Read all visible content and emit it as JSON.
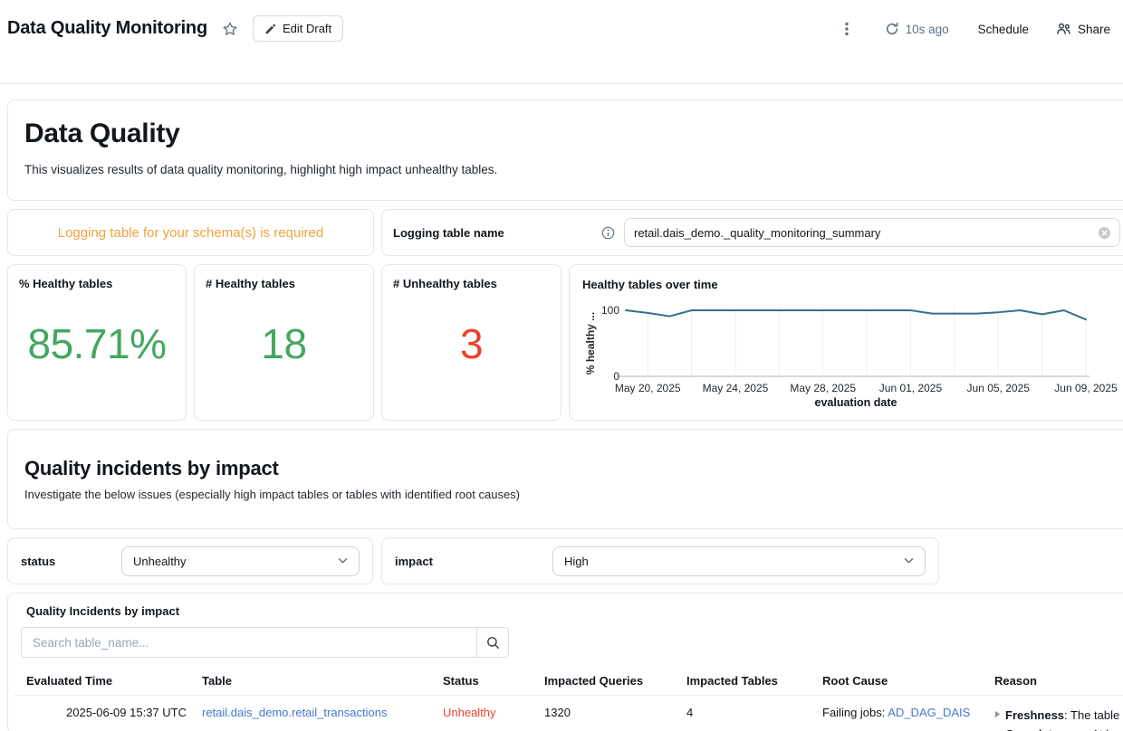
{
  "colors": {
    "green": "#44A75F",
    "red": "#E8432D",
    "orange": "#F0A23B",
    "link": "#4477CC",
    "secondary": "#5F7281"
  },
  "header": {
    "title": "Data Quality Monitoring",
    "edit_label": "Edit Draft",
    "refresh_age": "10s ago",
    "schedule_label": "Schedule",
    "share_label": "Share"
  },
  "intro": {
    "title": "Data Quality",
    "description": "This visualizes results of data quality monitoring, highlight high impact unhealthy tables."
  },
  "logging": {
    "warning": "Logging table for your schema(s) is required",
    "label": "Logging table name",
    "value": "retail.dais_demo._quality_monitoring_summary"
  },
  "stats": [
    {
      "label": "% Healthy tables",
      "value": "85.71%",
      "color": "#44A75F"
    },
    {
      "label": "# Healthy tables",
      "value": "18",
      "color": "#44A75F"
    },
    {
      "label": "# Unhealthy tables",
      "value": "3",
      "color": "#E8432D"
    }
  ],
  "chart_data": {
    "type": "line",
    "title": "Healthy tables over time",
    "xlabel": "evaluation date",
    "ylabel": "% healthy ...",
    "ylim": [
      0,
      100
    ],
    "y_ticks": [
      0,
      100
    ],
    "legend": false,
    "grid": "vertical",
    "line_color": "#31708F",
    "x": [
      "May 19, 2025",
      "May 20, 2025",
      "May 21, 2025",
      "May 22, 2025",
      "May 23, 2025",
      "May 24, 2025",
      "May 25, 2025",
      "May 26, 2025",
      "May 27, 2025",
      "May 28, 2025",
      "May 29, 2025",
      "May 30, 2025",
      "May 31, 2025",
      "Jun 01, 2025",
      "Jun 02, 2025",
      "Jun 03, 2025",
      "Jun 04, 2025",
      "Jun 05, 2025",
      "Jun 06, 2025",
      "Jun 07, 2025",
      "Jun 08, 2025",
      "Jun 09, 2025"
    ],
    "values": [
      100,
      96,
      91,
      100,
      100,
      100,
      100,
      100,
      100,
      100,
      100,
      100,
      100,
      100,
      95,
      95,
      95,
      97,
      100,
      94,
      100,
      86
    ],
    "x_tick_indices": [
      1,
      5,
      9,
      13,
      17,
      21
    ],
    "x_tick_labels": [
      "May 20, 2025",
      "May 24, 2025",
      "May 28, 2025",
      "Jun 01, 2025",
      "Jun 05, 2025",
      "Jun 09, 2025"
    ],
    "gridline_indices": [
      1,
      3,
      5,
      7,
      9,
      11,
      13,
      15,
      17,
      19,
      21
    ]
  },
  "section": {
    "title": "Quality incidents by impact",
    "subtitle": "Investigate the below issues (especially high impact tables or tables with identified root causes)"
  },
  "filters": {
    "status": {
      "label": "status",
      "value": "Unhealthy"
    },
    "impact": {
      "label": "impact",
      "value": "High"
    }
  },
  "table": {
    "title": "Quality Incidents by impact",
    "search_placeholder": "Search table_name...",
    "columns": [
      "Evaluated Time",
      "Table",
      "Status",
      "Impacted Queries",
      "Impacted Tables",
      "Root Cause",
      "Reason"
    ],
    "rows": [
      {
        "evaluated_time": "2025-06-09 15:37 UTC",
        "table_link": "retail.dais_demo.retail_transactions",
        "status": "Unhealthy",
        "impacted_queries": "1320",
        "impacted_tables": "4",
        "root_cause_prefix": "Failing jobs: ",
        "root_cause_link": "AD_DAG_DAIS",
        "reasons": [
          {
            "label": "Freshness",
            "text": ": The table"
          },
          {
            "label": "Completeness",
            "text": ": At le"
          }
        ]
      }
    ]
  }
}
